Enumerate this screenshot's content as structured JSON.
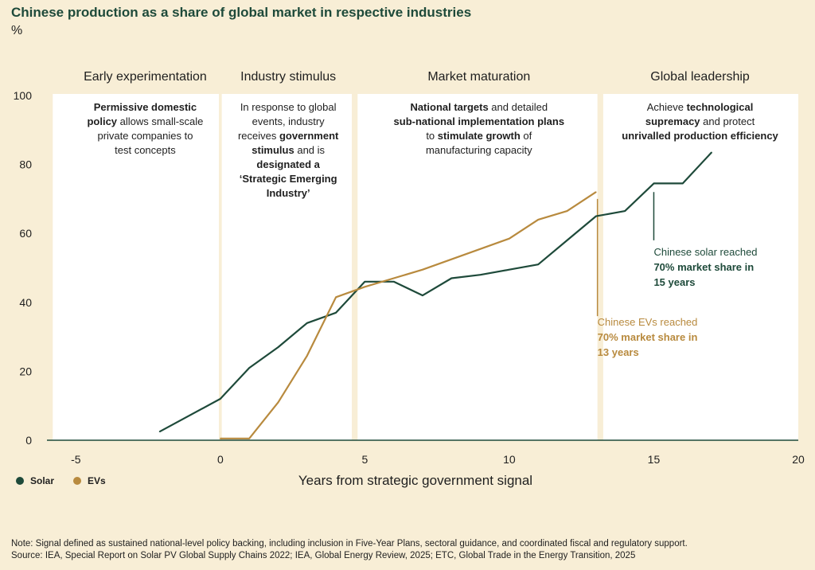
{
  "title": "Chinese production as a share of global market in respective industries",
  "unit": "%",
  "colors": {
    "background": "#f8eed6",
    "panel": "#ffffff",
    "solar": "#1e4a3a",
    "evs": "#b88a3e",
    "axis": "#1e4a3a"
  },
  "chart_data": {
    "type": "line",
    "xlabel": "Years from strategic government signal",
    "ylabel": "%",
    "xlim": [
      -6,
      20
    ],
    "ylim": [
      0,
      100
    ],
    "xticks": [
      "-5",
      "0",
      "5",
      "10",
      "15",
      "20"
    ],
    "yticks": [
      "0",
      "20",
      "40",
      "60",
      "80",
      "100"
    ],
    "legend_position": "bottom-left",
    "series": [
      {
        "name": "Solar",
        "color": "#1e4a3a",
        "x": [
          -2.1,
          0,
          1,
          2,
          3,
          4,
          5,
          6,
          7,
          8,
          9,
          10,
          11,
          12,
          13,
          14,
          15,
          16,
          17
        ],
        "y": [
          2.5,
          12,
          21,
          27,
          34,
          37,
          46,
          46,
          42,
          47,
          48,
          49.5,
          51,
          58,
          65,
          66.5,
          74.5,
          74.5,
          83.5
        ]
      },
      {
        "name": "EVs",
        "color": "#b88a3e",
        "x": [
          0,
          1,
          2,
          3,
          4,
          5,
          6,
          7,
          8,
          9,
          10,
          11,
          12,
          13
        ],
        "y": [
          0.5,
          0.5,
          11,
          24.5,
          41.5,
          44.5,
          47,
          49.5,
          52.5,
          55.5,
          58.5,
          64,
          66.5,
          72
        ]
      }
    ]
  },
  "phases": [
    {
      "title": "Early experimentation",
      "lines": [
        [
          {
            "t": "Permissive domestic",
            "b": true
          }
        ],
        [
          {
            "t": "policy",
            "b": true
          },
          {
            "t": " allows small-scale",
            "b": false
          }
        ],
        [
          {
            "t": "private companies to",
            "b": false
          }
        ],
        [
          {
            "t": "test concepts",
            "b": false
          }
        ]
      ]
    },
    {
      "title": "Industry stimulus",
      "lines": [
        [
          {
            "t": "In response to global",
            "b": false
          }
        ],
        [
          {
            "t": "events, industry",
            "b": false
          }
        ],
        [
          {
            "t": "receives ",
            "b": false
          },
          {
            "t": "government",
            "b": true
          }
        ],
        [
          {
            "t": "stimulus",
            "b": true
          },
          {
            "t": " and is",
            "b": false
          }
        ],
        [
          {
            "t": "designated a",
            "b": true
          }
        ],
        [
          {
            "t": "‘Strategic Emerging",
            "b": true
          }
        ],
        [
          {
            "t": "Industry’",
            "b": true
          }
        ]
      ]
    },
    {
      "title": "Market maturation",
      "lines": [
        [
          {
            "t": "National targets",
            "b": true
          },
          {
            "t": " and detailed",
            "b": false
          }
        ],
        [
          {
            "t": "sub-national implementation plans",
            "b": true
          }
        ],
        [
          {
            "t": "to ",
            "b": false
          },
          {
            "t": "stimulate growth",
            "b": true
          },
          {
            "t": " of",
            "b": false
          }
        ],
        [
          {
            "t": "manufacturing capacity",
            "b": false
          }
        ]
      ]
    },
    {
      "title": "Global leadership",
      "lines": [
        [
          {
            "t": "Achieve ",
            "b": false
          },
          {
            "t": "technological",
            "b": true
          }
        ],
        [
          {
            "t": "supremacy",
            "b": true
          },
          {
            "t": " and protect",
            "b": false
          }
        ],
        [
          {
            "t": "unrivalled production efficiency",
            "b": true
          }
        ]
      ]
    }
  ],
  "annotations": {
    "solar": {
      "lines": [
        [
          {
            "t": "Chinese solar reached",
            "b": false
          }
        ],
        [
          {
            "t": "70% market share in",
            "b": true
          }
        ],
        [
          {
            "t": "15 years",
            "b": true
          }
        ]
      ]
    },
    "evs": {
      "lines": [
        [
          {
            "t": "Chinese EVs reached",
            "b": false
          }
        ],
        [
          {
            "t": "70% market share in",
            "b": true
          }
        ],
        [
          {
            "t": "13 years",
            "b": true
          }
        ]
      ]
    }
  },
  "legend": [
    {
      "label": "Solar",
      "color": "#1e4a3a"
    },
    {
      "label": "EVs",
      "color": "#b88a3e"
    }
  ],
  "note": "Note: Signal defined as sustained national-level policy backing, including inclusion in Five-Year Plans, sectoral guidance, and coordinated fiscal and regulatory support.",
  "source": "Source: IEA, Special Report on Solar PV Global Supply Chains  2022; IEA, Global Energy Review, 2025; ETC, Global Trade in the Energy Transition, 2025"
}
